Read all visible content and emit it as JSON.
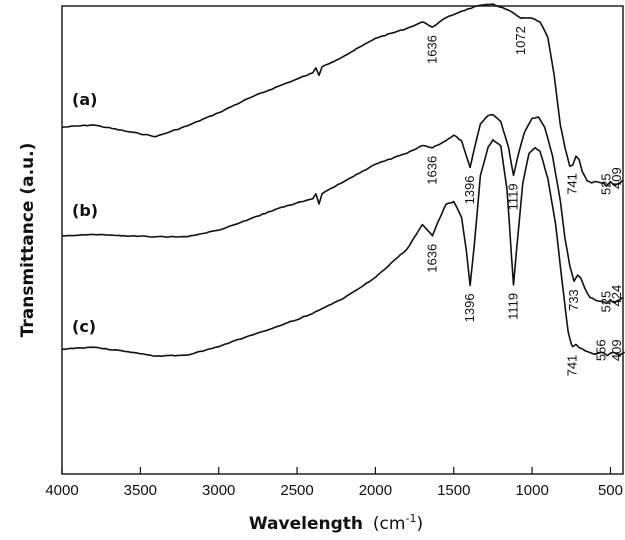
{
  "chart_data": {
    "type": "line",
    "xlabel_main": "Wavelength",
    "xlabel_unit": "(cm",
    "xlabel_sup": "-1",
    "xlabel_close": ")",
    "ylabel": "Transmittance (a.u.)",
    "xlim": [
      4000,
      420
    ],
    "ylim": [
      0,
      1
    ],
    "x_reversed": true,
    "x_ticks": [
      4000,
      3500,
      3000,
      2500,
      2000,
      1500,
      1000,
      500
    ],
    "y_ticks_shown": false,
    "grid": false,
    "series": [
      {
        "name": "(a)",
        "x": [
          4000,
          3800,
          3600,
          3400,
          3200,
          3000,
          2800,
          2600,
          2400,
          2380,
          2360,
          2340,
          2200,
          2000,
          1800,
          1700,
          1636,
          1550,
          1450,
          1350,
          1250,
          1150,
          1072,
          1000,
          950,
          900,
          860,
          820,
          790,
          760,
          741,
          720,
          700,
          680,
          650,
          620,
          600,
          560,
          525,
          500,
          470,
          440,
          420
        ],
        "y": [
          0.741,
          0.746,
          0.733,
          0.721,
          0.744,
          0.772,
          0.804,
          0.831,
          0.857,
          0.868,
          0.852,
          0.87,
          0.893,
          0.931,
          0.952,
          0.966,
          0.955,
          0.975,
          0.989,
          1.0,
          1.004,
          0.991,
          0.974,
          0.974,
          0.966,
          0.933,
          0.853,
          0.746,
          0.697,
          0.658,
          0.66,
          0.679,
          0.672,
          0.646,
          0.627,
          0.622,
          0.625,
          0.622,
          0.615,
          0.625,
          0.617,
          0.622,
          0.628
        ],
        "annotations": [
          {
            "x": 1636,
            "label": "1636"
          },
          {
            "x": 1072,
            "label": "1072"
          },
          {
            "x": 741,
            "label": "741"
          },
          {
            "x": 525,
            "label": "525"
          },
          {
            "x": 409,
            "label": "409"
          }
        ]
      },
      {
        "name": "(b)",
        "x": [
          4000,
          3800,
          3600,
          3400,
          3200,
          3000,
          2800,
          2600,
          2400,
          2380,
          2360,
          2340,
          2200,
          2000,
          1800,
          1700,
          1636,
          1550,
          1500,
          1450,
          1420,
          1396,
          1370,
          1330,
          1280,
          1250,
          1200,
          1150,
          1119,
          1090,
          1050,
          1000,
          960,
          920,
          870,
          820,
          790,
          760,
          733,
          710,
          690,
          660,
          630,
          600,
          560,
          525,
          500,
          470,
          440,
          424
        ],
        "y": [
          0.509,
          0.512,
          0.509,
          0.507,
          0.507,
          0.521,
          0.545,
          0.57,
          0.588,
          0.599,
          0.577,
          0.599,
          0.625,
          0.662,
          0.685,
          0.702,
          0.697,
          0.712,
          0.724,
          0.712,
          0.68,
          0.655,
          0.693,
          0.748,
          0.766,
          0.768,
          0.753,
          0.697,
          0.638,
          0.68,
          0.729,
          0.76,
          0.763,
          0.741,
          0.68,
          0.584,
          0.503,
          0.446,
          0.412,
          0.425,
          0.419,
          0.394,
          0.377,
          0.372,
          0.369,
          0.364,
          0.372,
          0.366,
          0.372,
          0.377
        ],
        "annotations": [
          {
            "x": 1636,
            "label": "1636"
          },
          {
            "x": 1396,
            "label": "1396"
          },
          {
            "x": 1119,
            "label": "1119"
          },
          {
            "x": 733,
            "label": "733"
          },
          {
            "x": 525,
            "label": "525"
          },
          {
            "x": 424,
            "label": "424"
          }
        ]
      },
      {
        "name": "(c)",
        "x": [
          4000,
          3800,
          3600,
          3400,
          3200,
          3000,
          2800,
          2600,
          2400,
          2200,
          2000,
          1800,
          1700,
          1650,
          1636,
          1600,
          1550,
          1500,
          1450,
          1420,
          1396,
          1370,
          1330,
          1280,
          1250,
          1200,
          1160,
          1130,
          1119,
          1100,
          1060,
          1020,
          980,
          950,
          900,
          850,
          800,
          770,
          750,
          741,
          720,
          700,
          660,
          620,
          580,
          556,
          520,
          480,
          440,
          409
        ],
        "y": [
          0.267,
          0.271,
          0.262,
          0.252,
          0.254,
          0.272,
          0.296,
          0.318,
          0.343,
          0.376,
          0.42,
          0.48,
          0.533,
          0.515,
          0.509,
          0.539,
          0.576,
          0.582,
          0.548,
          0.478,
          0.403,
          0.485,
          0.638,
          0.699,
          0.714,
          0.701,
          0.608,
          0.459,
          0.404,
          0.475,
          0.62,
          0.685,
          0.697,
          0.69,
          0.632,
          0.534,
          0.387,
          0.303,
          0.278,
          0.272,
          0.277,
          0.27,
          0.263,
          0.258,
          0.258,
          0.26,
          0.253,
          0.26,
          0.255,
          0.26
        ],
        "annotations": [
          {
            "x": 1636,
            "label": "1636"
          },
          {
            "x": 1396,
            "label": "1396"
          },
          {
            "x": 1119,
            "label": "1119"
          },
          {
            "x": 741,
            "label": "741"
          },
          {
            "x": 556,
            "label": "556"
          },
          {
            "x": 409,
            "label": "409"
          }
        ]
      }
    ]
  }
}
